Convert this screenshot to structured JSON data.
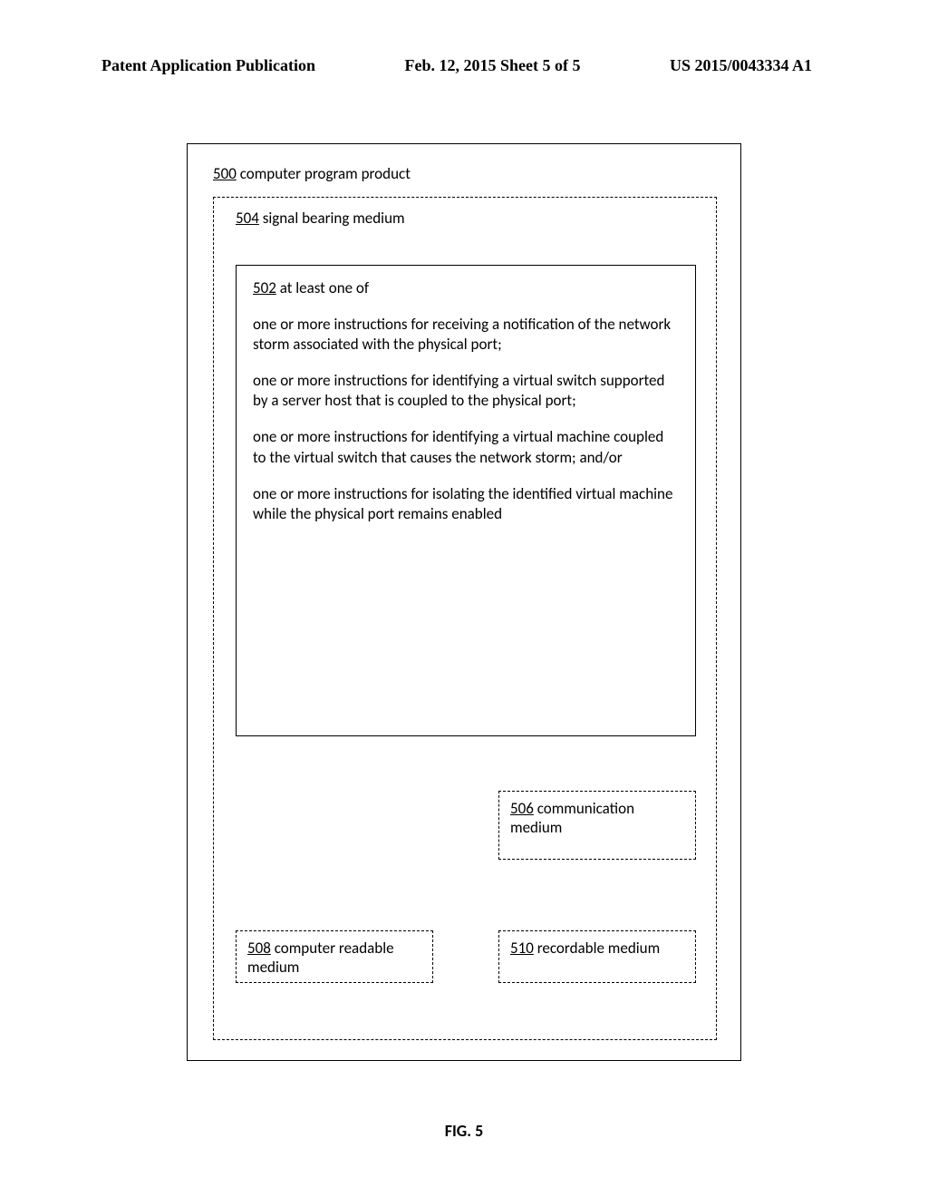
{
  "header": {
    "left": "Patent Application Publication",
    "center": "Feb. 12, 2015   Sheet 5 of 5",
    "right": "US 2015/0043334 A1"
  },
  "box500_ref": "500",
  "box500_label": " computer program product",
  "box504_ref": "504",
  "box504_label": " signal bearing medium",
  "box502_ref": "502",
  "box502_label": " at least one of",
  "para1": "one or more instructions for receiving a notification of the network storm associated with the physical port;",
  "para2": "one or more instructions for identifying a virtual switch supported by a server host that is coupled to the physical port;",
  "para3": "one or more instructions for identifying a virtual machine coupled to the virtual switch that causes the network storm; and/or",
  "para4": "one or more instructions for isolating the identified virtual machine while the physical port remains enabled",
  "box506_ref": "506",
  "box506_label": " communication medium",
  "box508_ref": "508",
  "box508_label": " computer readable medium",
  "box510_ref": "510",
  "box510_label": " recordable medium",
  "figure_label": "FIG. 5"
}
